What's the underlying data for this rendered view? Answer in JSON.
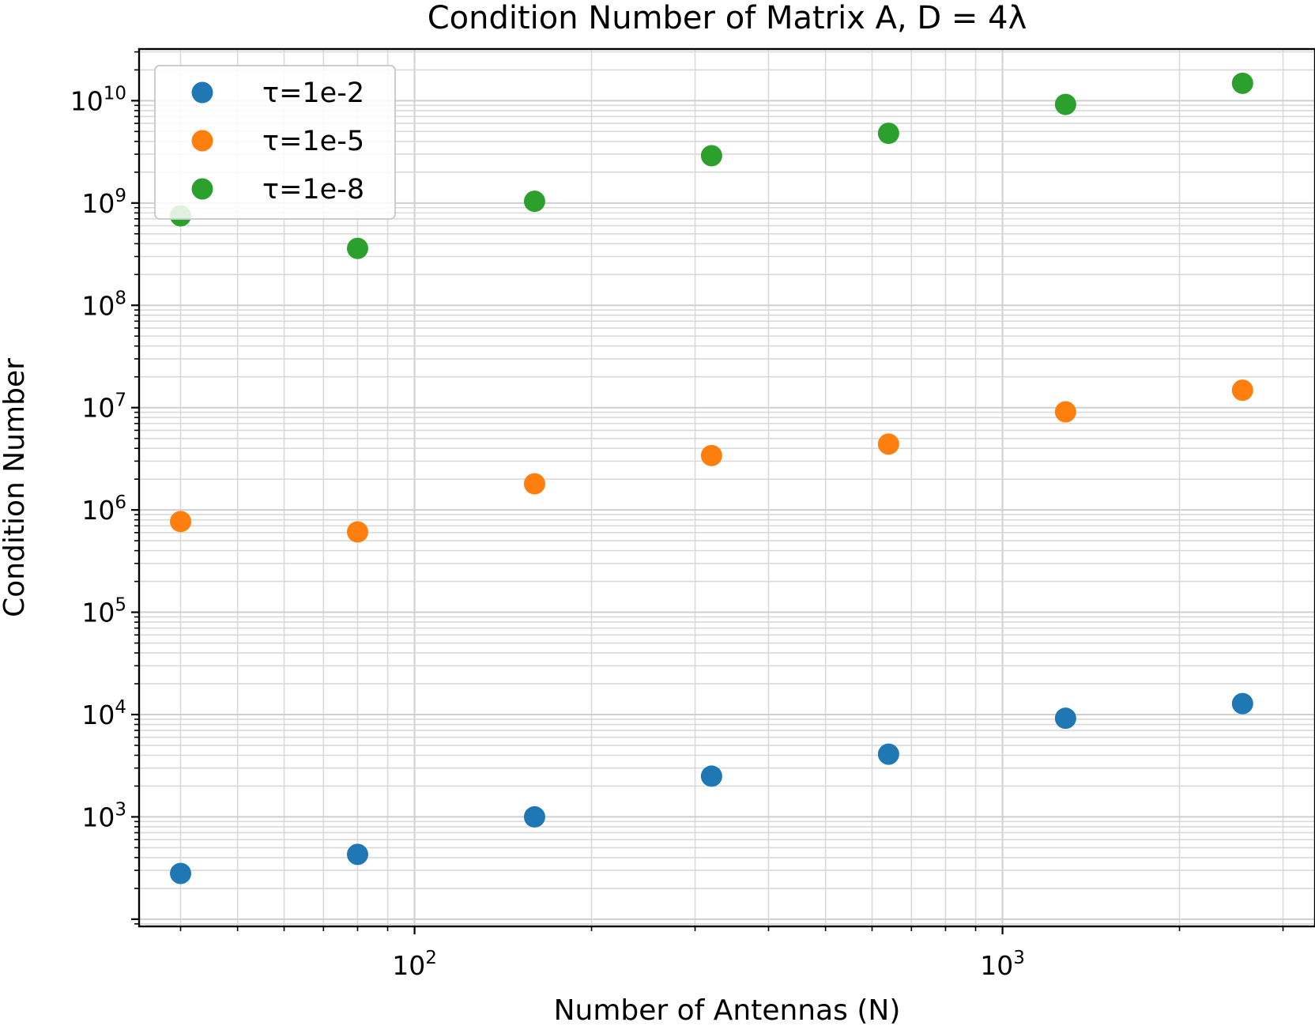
{
  "chart_data": {
    "type": "scatter",
    "title": "Condition Number of Matrix A, D = 4λ",
    "xlabel": "Number of Antennas (N)",
    "ylabel": "Condition Number",
    "xscale": "log",
    "yscale": "log",
    "xlim": [
      34,
      3400
    ],
    "ylim": [
      85,
      32000000000
    ],
    "grid": "both",
    "legend_position": "top-left",
    "x_tick_labels": [
      {
        "value": 100,
        "base": "10",
        "exp": "2"
      },
      {
        "value": 1000,
        "base": "10",
        "exp": "3"
      }
    ],
    "y_tick_labels": [
      {
        "value": 1000,
        "base": "10",
        "exp": "3"
      },
      {
        "value": 10000,
        "base": "10",
        "exp": "4"
      },
      {
        "value": 100000,
        "base": "10",
        "exp": "5"
      },
      {
        "value": 1000000,
        "base": "10",
        "exp": "6"
      },
      {
        "value": 10000000,
        "base": "10",
        "exp": "7"
      },
      {
        "value": 100000000,
        "base": "10",
        "exp": "8"
      },
      {
        "value": 1000000000,
        "base": "10",
        "exp": "9"
      },
      {
        "value": 10000000000,
        "base": "10",
        "exp": "10"
      }
    ],
    "x": [
      40,
      80,
      160,
      320,
      640,
      1280,
      2560
    ],
    "series": [
      {
        "name": "τ=1e-2",
        "color": "#1f77b4",
        "values": [
          280,
          430,
          1000,
          2500,
          4100,
          9200,
          12800
        ]
      },
      {
        "name": "τ=1e-5",
        "color": "#ff7f0e",
        "values": [
          770000,
          610000,
          1800000,
          3400000,
          4400000,
          9100000,
          14800000
        ]
      },
      {
        "name": "τ=1e-8",
        "color": "#2ca02c",
        "values": [
          750000000,
          360000000,
          1040000000,
          2900000000,
          4800000000,
          9200000000,
          14800000000
        ]
      }
    ]
  }
}
